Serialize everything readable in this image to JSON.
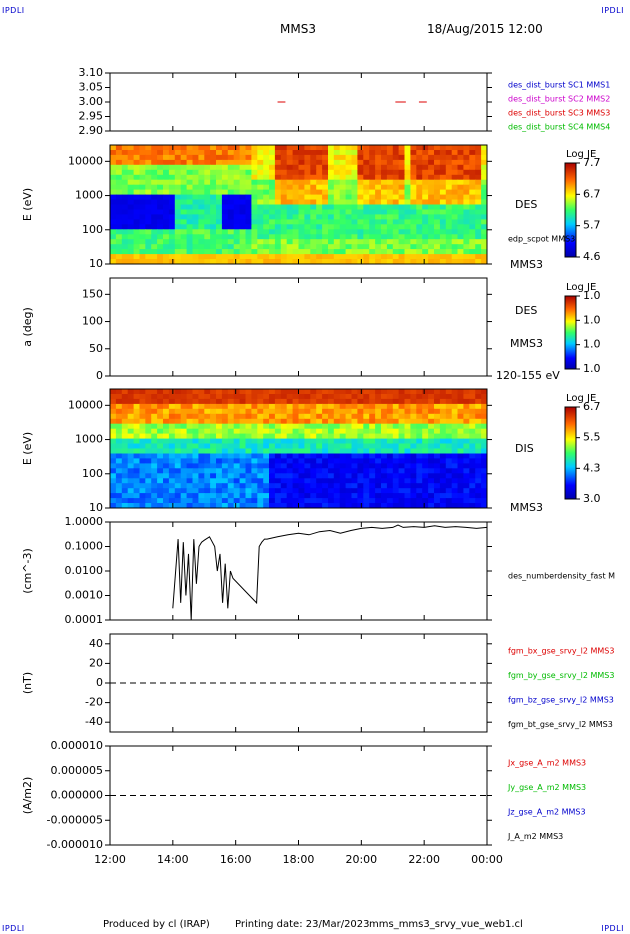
{
  "corner_label": "IPDLI",
  "header": {
    "spacecraft": "MMS3",
    "datetime": "18/Aug/2015 12:00"
  },
  "footer": {
    "produced": "Produced by cl (IRAP)",
    "printing": "Printing date: 23/Mar/2023",
    "file": "mms_mms3_srvy_vue_web1.cl"
  },
  "colors": {
    "red": "#dd0000",
    "magenta": "#cc00cc",
    "blue": "#0000cc",
    "green": "#00bb00"
  },
  "time_axis": {
    "start": "12:00",
    "end": "00:00",
    "labels": [
      "12:00",
      "14:00",
      "16:00",
      "18:00",
      "20:00",
      "22:00",
      "00:00"
    ]
  },
  "chart_data": [
    {
      "type": "scatter",
      "ylabel": "",
      "ylim": [
        2.9,
        3.1
      ],
      "yticks": [
        "3.10",
        "3.05",
        "3.00",
        "2.95",
        "2.90"
      ],
      "ytick_values": [
        3.1,
        3.05,
        3.0,
        2.95,
        2.9
      ],
      "legend": [
        {
          "text": "des_dist_burst SC1 MMS1",
          "color": "#0000cc"
        },
        {
          "text": "des_dist_burst SC2 MMS2",
          "color": "#cc00cc"
        },
        {
          "text": "des_dist_burst SC3 MMS3",
          "color": "#dd0000"
        },
        {
          "text": "des_dist_burst SC4 MMS4",
          "color": "#00bb00"
        }
      ],
      "segments": [
        {
          "start": "17:20",
          "end": "17:35",
          "y": 3.0
        },
        {
          "start": "21:05",
          "end": "21:25",
          "y": 3.0
        },
        {
          "start": "21:50",
          "end": "22:05",
          "y": 3.0
        }
      ]
    },
    {
      "type": "heatmap",
      "ylabel": "E (eV)",
      "yscale": "log",
      "ylim": [
        10,
        30000
      ],
      "yticks": [
        "10000",
        "1000",
        "100",
        "10"
      ],
      "ytick_values": [
        10000,
        1000,
        100,
        10
      ],
      "label": "DES",
      "extra_label": "edp_scpot MMS3",
      "sc_label": "MMS3",
      "colorbar": {
        "title": "Log JE",
        "ticks": [
          "7.7",
          "6.7",
          "5.7",
          "4.6"
        ]
      }
    },
    {
      "type": "heatmap",
      "ylabel": "a (deg)",
      "ylim": [
        0,
        180
      ],
      "yticks": [
        "150",
        "100",
        "50",
        "0"
      ],
      "ytick_values": [
        150,
        100,
        50,
        0
      ],
      "label": "DES",
      "sc_label": "MMS3",
      "energy_label": "120-155 eV",
      "colorbar": {
        "title": "Log JE",
        "ticks": [
          "1.0",
          "1.0",
          "1.0",
          "1.0"
        ]
      }
    },
    {
      "type": "heatmap",
      "ylabel": "E (eV)",
      "yscale": "log",
      "ylim": [
        10,
        30000
      ],
      "yticks": [
        "10000",
        "1000",
        "100",
        "10"
      ],
      "ytick_values": [
        10000,
        1000,
        100,
        10
      ],
      "label": "DIS",
      "sc_label": "MMS3",
      "colorbar": {
        "title": "Log JE",
        "ticks": [
          "6.7",
          "5.5",
          "4.3",
          "3.0"
        ]
      }
    },
    {
      "type": "line",
      "ylabel": "(cm^-3)",
      "yscale": "log",
      "ylim": [
        0.0001,
        1.0
      ],
      "yticks": [
        "1.0000",
        "0.1000",
        "0.0100",
        "0.0010",
        "0.0001"
      ],
      "ytick_values": [
        1.0,
        0.1,
        0.01,
        0.001,
        0.0001
      ],
      "legend": [
        {
          "text": "des_numberdensity_fast M",
          "color": "#000000"
        }
      ],
      "x": [
        "14:00",
        "14:10",
        "14:15",
        "14:20",
        "14:25",
        "14:30",
        "14:35",
        "14:40",
        "14:45",
        "14:50",
        "14:55",
        "15:00",
        "15:10",
        "15:20",
        "15:25",
        "15:30",
        "15:35",
        "15:40",
        "15:45",
        "15:50",
        "15:55",
        "16:40",
        "16:45",
        "16:50",
        "16:55",
        "17:00",
        "17:20",
        "17:40",
        "18:00",
        "18:20",
        "18:40",
        "19:00",
        "19:20",
        "19:40",
        "20:00",
        "20:20",
        "20:40",
        "21:00",
        "21:10",
        "21:20",
        "21:40",
        "22:00",
        "22:20",
        "22:40",
        "23:00",
        "23:20",
        "23:40",
        "00:00"
      ],
      "y": [
        0.0003,
        0.2,
        0.0005,
        0.15,
        0.001,
        0.05,
        0.0001,
        0.2,
        0.003,
        0.1,
        0.15,
        0.18,
        0.25,
        0.1,
        0.01,
        0.05,
        0.0005,
        0.02,
        0.0003,
        0.01,
        0.005,
        0.0005,
        0.1,
        0.15,
        0.2,
        0.2,
        0.25,
        0.3,
        0.35,
        0.3,
        0.4,
        0.45,
        0.35,
        0.45,
        0.55,
        0.6,
        0.55,
        0.6,
        0.75,
        0.6,
        0.65,
        0.6,
        0.7,
        0.6,
        0.65,
        0.6,
        0.55,
        0.6
      ]
    },
    {
      "type": "line",
      "ylabel": "(nT)",
      "ylim": [
        -50,
        50
      ],
      "yticks": [
        "40",
        "20",
        "0",
        "-20",
        "-40"
      ],
      "ytick_values": [
        40,
        20,
        0,
        -20,
        -40
      ],
      "legend": [
        {
          "text": "fgm_bx_gse_srvy_l2 MMS3",
          "color": "#dd0000"
        },
        {
          "text": "fgm_by_gse_srvy_l2 MMS3",
          "color": "#00bb00"
        },
        {
          "text": "fgm_bz_gse_srvy_l2 MMS3",
          "color": "#0000cc"
        },
        {
          "text": "fgm_bt_gse_srvy_l2 MMS3",
          "color": "#000000"
        }
      ]
    },
    {
      "type": "line",
      "ylabel": "(A/m2)",
      "ylim": [
        -1e-05,
        1e-05
      ],
      "yticks": [
        "0.000010",
        "0.000005",
        "0.000000",
        "-0.000005",
        "-0.000010"
      ],
      "ytick_values": [
        1e-05,
        5e-06,
        0.0,
        -5e-06,
        -1e-05
      ],
      "legend": [
        {
          "text": "Jx_gse_A_m2 MMS3",
          "color": "#dd0000"
        },
        {
          "text": "Jy_gse_A_m2 MMS3",
          "color": "#00bb00"
        },
        {
          "text": "Jz_gse_A_m2 MMS3",
          "color": "#0000cc"
        },
        {
          "text": "J_A_m2 MMS3",
          "color": "#000000"
        }
      ]
    }
  ]
}
